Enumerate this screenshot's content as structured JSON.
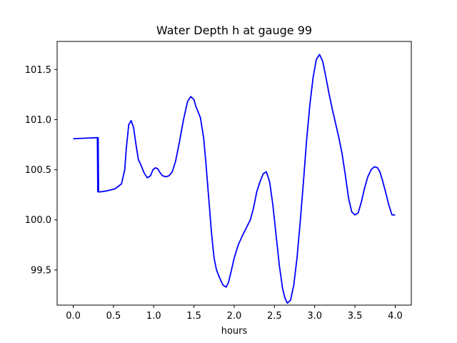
{
  "chart_data": {
    "type": "line",
    "title": "Water Depth h at gauge 99",
    "xlabel": "hours",
    "ylabel": "",
    "xlim": [
      -0.2,
      4.2
    ],
    "ylim": [
      99.15,
      101.78
    ],
    "grid": false,
    "xticks": [
      {
        "value": 0.0,
        "label": "0.0"
      },
      {
        "value": 0.5,
        "label": "0.5"
      },
      {
        "value": 1.0,
        "label": "1.0"
      },
      {
        "value": 1.5,
        "label": "1.5"
      },
      {
        "value": 2.0,
        "label": "2.0"
      },
      {
        "value": 2.5,
        "label": "2.5"
      },
      {
        "value": 3.0,
        "label": "3.0"
      },
      {
        "value": 3.5,
        "label": "3.5"
      },
      {
        "value": 4.0,
        "label": "4.0"
      }
    ],
    "yticks": [
      {
        "value": 99.5,
        "label": "99.5"
      },
      {
        "value": 100.0,
        "label": "100.0"
      },
      {
        "value": 100.5,
        "label": "100.5"
      },
      {
        "value": 101.0,
        "label": "101.0"
      },
      {
        "value": 101.5,
        "label": "101.5"
      }
    ],
    "series": [
      {
        "color": "#0000ff",
        "x": [
          0.0,
          0.29,
          0.3,
          0.305,
          0.31,
          0.315,
          0.32,
          0.34,
          0.42,
          0.52,
          0.6,
          0.64,
          0.66,
          0.69,
          0.72,
          0.75,
          0.78,
          0.81,
          0.84,
          0.88,
          0.92,
          0.96,
          0.99,
          1.02,
          1.05,
          1.08,
          1.11,
          1.15,
          1.19,
          1.23,
          1.27,
          1.32,
          1.37,
          1.42,
          1.46,
          1.5,
          1.52,
          1.55,
          1.58,
          1.62,
          1.65,
          1.68,
          1.72,
          1.75,
          1.78,
          1.82,
          1.86,
          1.9,
          1.93,
          1.96,
          2.0,
          2.05,
          2.1,
          2.15,
          2.2,
          2.24,
          2.28,
          2.32,
          2.36,
          2.4,
          2.44,
          2.48,
          2.52,
          2.56,
          2.6,
          2.63,
          2.66,
          2.7,
          2.74,
          2.78,
          2.82,
          2.86,
          2.9,
          2.94,
          2.98,
          3.02,
          3.06,
          3.1,
          3.14,
          3.18,
          3.22,
          3.26,
          3.3,
          3.34,
          3.38,
          3.42,
          3.46,
          3.5,
          3.54,
          3.58,
          3.62,
          3.66,
          3.7,
          3.74,
          3.78,
          3.81,
          3.84,
          3.88,
          3.92,
          3.96,
          4.0
        ],
        "y": [
          100.81,
          100.82,
          100.82,
          100.28,
          100.82,
          100.28,
          100.28,
          100.28,
          100.29,
          100.31,
          100.36,
          100.5,
          100.72,
          100.95,
          100.99,
          100.92,
          100.75,
          100.6,
          100.55,
          100.47,
          100.42,
          100.44,
          100.5,
          100.52,
          100.51,
          100.47,
          100.44,
          100.43,
          100.44,
          100.48,
          100.58,
          100.78,
          101.0,
          101.18,
          101.23,
          101.2,
          101.14,
          101.08,
          101.02,
          100.82,
          100.55,
          100.25,
          99.85,
          99.62,
          99.5,
          99.42,
          99.35,
          99.33,
          99.38,
          99.48,
          99.62,
          99.75,
          99.84,
          99.92,
          100.0,
          100.12,
          100.28,
          100.38,
          100.46,
          100.48,
          100.38,
          100.15,
          99.85,
          99.55,
          99.32,
          99.22,
          99.17,
          99.2,
          99.35,
          99.62,
          99.98,
          100.38,
          100.8,
          101.15,
          101.42,
          101.6,
          101.65,
          101.58,
          101.42,
          101.25,
          101.1,
          100.96,
          100.82,
          100.66,
          100.45,
          100.22,
          100.08,
          100.05,
          100.07,
          100.18,
          100.32,
          100.43,
          100.5,
          100.53,
          100.52,
          100.48,
          100.4,
          100.28,
          100.15,
          100.05,
          100.05
        ]
      }
    ]
  }
}
